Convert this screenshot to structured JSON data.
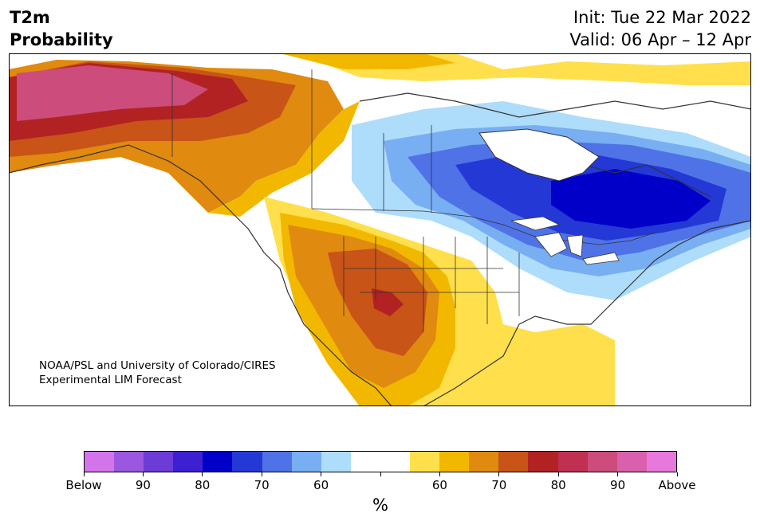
{
  "header": {
    "variable": "T2m",
    "product": "Probability",
    "init": "Init: Tue 22 Mar 2022",
    "valid": "Valid: 06 Apr – 12 Apr"
  },
  "credit": {
    "line1": "NOAA/PSL and University of Colorado/CIRES",
    "line2": "Experimental LIM Forecast"
  },
  "colorbar": {
    "colors": [
      "#d474ea",
      "#9b57e0",
      "#6d3cd6",
      "#3d20d2",
      "#0000c8",
      "#2438d6",
      "#4f72e6",
      "#78aef2",
      "#aedcfb",
      "#ffffff",
      "#ffffff",
      "#ffe04c",
      "#f2b800",
      "#e08a10",
      "#c85418",
      "#b22222",
      "#c03050",
      "#cc4c7c",
      "#d860ac",
      "#e878dc"
    ],
    "labels": [
      "Below",
      "90",
      "80",
      "70",
      "60",
      "",
      "60",
      "70",
      "80",
      "90",
      "Above"
    ],
    "unit": "%"
  },
  "colors": {
    "land_neutral": "#ffffff",
    "border": "#333333",
    "ocean": "#ffffff"
  }
}
